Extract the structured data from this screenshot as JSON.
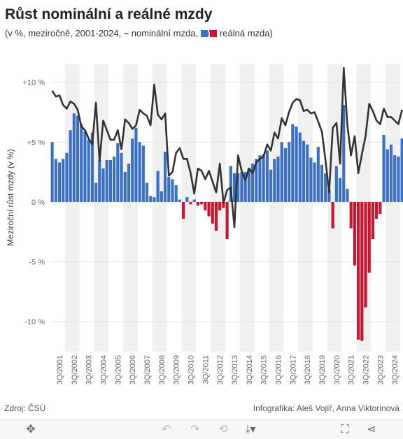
{
  "title": "Růst nominální a reálné mzdy",
  "subtitle": {
    "prefix": "(v %, meziročně, 2001-2024,",
    "dash": "–",
    "nominal": "nominální mzda,",
    "slash": "/",
    "real": "reálná mzda)"
  },
  "colors": {
    "nominal_line": "#333333",
    "real_pos": "#3a6fc4",
    "real_neg": "#c9132f",
    "band": "#f0f0f0"
  },
  "footer": {
    "source": "Zdroj: ČSÚ",
    "credit": "Infografika: Aleš Vojíř, Anna Viktorinová"
  },
  "toolbar": [
    "move-icon",
    "undo-icon",
    "redo-icon",
    "revert-icon",
    "download-icon",
    "fullscreen-icon",
    "share-icon"
  ],
  "chart_data": {
    "type": "bar+line",
    "ylabel": "Meziroční růst mzdy (v %)",
    "ylim": [
      -12.5,
      11.5
    ],
    "yticks": [
      10,
      5,
      0,
      -5,
      -10
    ],
    "ytick_labels": [
      "+10 %",
      "+5 %",
      "0 %",
      "-5 %",
      "-10 %"
    ],
    "xtick_labels": [
      "3Q/2001",
      "3Q/2002",
      "3Q/2003",
      "3Q/2004",
      "3Q/2005",
      "3Q/2006",
      "3Q/2007",
      "3Q/2008",
      "3Q/2009",
      "3Q/2010",
      "3Q/2011",
      "3Q/2012",
      "3Q/2013",
      "3Q/2014",
      "3Q/2015",
      "3Q/2016",
      "3Q/2017",
      "3Q/2018",
      "3Q/2019",
      "3Q/2020",
      "3Q/2021",
      "3Q/2022",
      "3Q/2023",
      "3Q/2024"
    ],
    "start_year": 2001,
    "quarters_per_year": 4,
    "series": [
      {
        "name": "reálná mzda",
        "type": "bar",
        "values": [
          5.0,
          3.6,
          3.3,
          3.6,
          4.1,
          6.0,
          7.4,
          7.2,
          6.5,
          5.9,
          5.2,
          5.8,
          1.6,
          3.5,
          2.8,
          3.5,
          3.5,
          3.8,
          4.9,
          4.1,
          2.5,
          3.2,
          5.3,
          6.2,
          5.0,
          4.7,
          1.6,
          0.5,
          0.4,
          2.6,
          0.9,
          4.2,
          2.1,
          1.9,
          1.4,
          0.2,
          -1.4,
          0.4,
          -0.2,
          0.2,
          -0.3,
          -0.2,
          -0.7,
          -1.2,
          -1.8,
          -2.4,
          -0.7,
          -0.5,
          -3.1,
          3.0,
          2.4,
          2.4,
          2.5,
          2.5,
          2.8,
          3.2,
          3.6,
          3.9,
          4.0,
          4.3,
          2.7,
          3.6,
          3.8,
          5.0,
          4.5,
          5.0,
          6.5,
          6.3,
          5.8,
          5.1,
          4.8,
          3.7,
          3.3,
          4.6,
          3.1,
          2.4,
          1.1,
          -2.2,
          3.0,
          2.0,
          8.1,
          1.1,
          -2.2,
          -5.3,
          -11.5,
          -11.6,
          -8.8,
          -5.9,
          -3.1,
          -1.4,
          -1.0,
          5.6,
          4.4,
          4.8,
          3.9,
          3.8,
          5.3
        ]
      },
      {
        "name": "nominální mzda",
        "type": "line",
        "values": [
          9.3,
          8.8,
          8.9,
          8.1,
          7.8,
          8.4,
          8.2,
          7.7,
          6.3,
          6.0,
          5.3,
          4.8,
          8.3,
          3.4,
          6.8,
          6.0,
          5.2,
          5.2,
          6.0,
          4.4,
          6.9,
          6.6,
          6.1,
          6.4,
          7.7,
          7.4,
          7.2,
          6.4,
          9.8,
          7.3,
          6.9,
          7.4,
          2.2,
          2.5,
          4.1,
          4.5,
          3.6,
          3.6,
          2.4,
          0.7,
          2.8,
          2.6,
          1.9,
          2.6,
          1.7,
          0.8,
          3.2,
          -0.1,
          1.0,
          1.2,
          -2.1,
          3.9,
          2.6,
          1.8,
          2.8,
          2.4,
          3.3,
          3.6,
          3.8,
          4.8,
          4.3,
          5.8,
          5.3,
          7.0,
          6.4,
          7.5,
          8.3,
          8.6,
          8.5,
          7.6,
          7.7,
          7.4,
          7.5,
          6.7,
          5.9,
          3.5,
          0.8,
          6.2,
          6.6,
          3.2,
          11.2,
          6.4,
          3.9,
          5.5,
          2.4,
          4.0,
          5.5,
          8.2,
          7.6,
          6.8,
          6.5,
          7.8,
          7.1,
          7.1,
          6.8,
          6.5,
          7.7
        ]
      }
    ]
  }
}
